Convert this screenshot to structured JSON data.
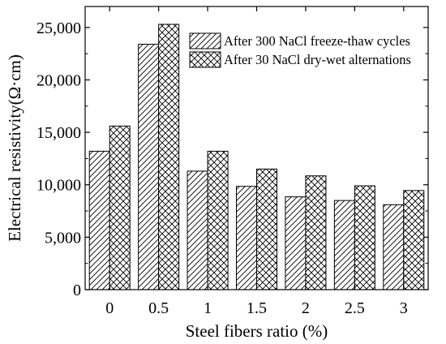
{
  "chart_data": {
    "type": "bar",
    "xlabel": "Steel fibers ratio (%)",
    "ylabel": "Electrical resistivity(Ω·cm)",
    "categories": [
      "0",
      "0.5",
      "1",
      "1.5",
      "2",
      "2.5",
      "3"
    ],
    "ylim": [
      0,
      27000
    ],
    "yticks": [
      0,
      5000,
      10000,
      15000,
      20000,
      25000
    ],
    "ytick_labels": [
      "0",
      "5,000",
      "10,000",
      "15,000",
      "20,000",
      "25,000"
    ],
    "grid": false,
    "legend_position": "top-right",
    "series": [
      {
        "name": "After 300 NaCl freeze-thaw cycles",
        "pattern": "diagonal-hatch",
        "values": [
          13200,
          23400,
          11300,
          9850,
          8850,
          8500,
          8100
        ]
      },
      {
        "name": "After 30 NaCl dry-wet alternations",
        "pattern": "cross-hatch",
        "values": [
          15600,
          25300,
          13200,
          11500,
          10850,
          9900,
          9450
        ]
      }
    ],
    "colors": {
      "bar_fill": "#ffffff",
      "stroke": "#000000"
    }
  }
}
